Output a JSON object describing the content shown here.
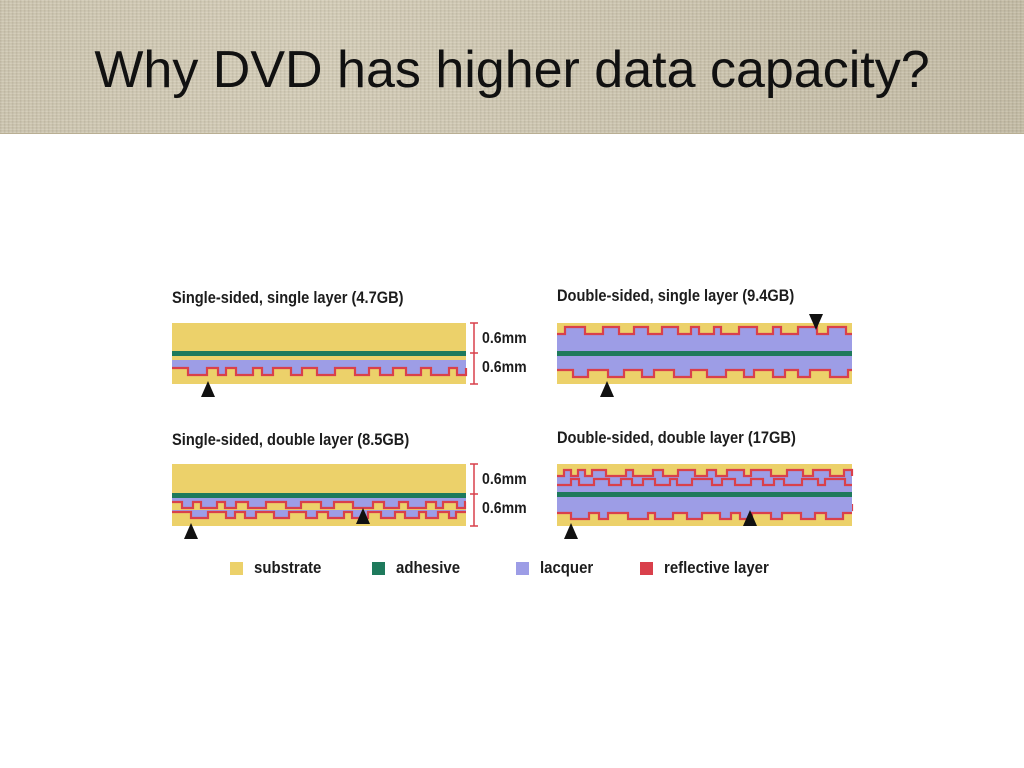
{
  "slide": {
    "title": "Why DVD has higher data capacity?"
  },
  "figure": {
    "panels": [
      {
        "title": "Single-sided, single layer (4.7GB)"
      },
      {
        "title": "Double-sided, single layer (9.4GB)"
      },
      {
        "title": "Single-sided, double layer (8.5GB)"
      },
      {
        "title": "Double-sided, double layer (17GB)"
      }
    ],
    "thickness_labels": [
      "0.6mm",
      "0.6mm",
      "0.6mm",
      "0.6mm"
    ],
    "legend": [
      {
        "label": "substrate",
        "color": "#ecd16a"
      },
      {
        "label": "adhesive",
        "color": "#1e7a5c"
      },
      {
        "label": "lacquer",
        "color": "#9d9de6"
      },
      {
        "label": "reflective layer",
        "color": "#d9404b"
      }
    ],
    "colors": {
      "substrate": "#ecd16a",
      "adhesive": "#1e7a5c",
      "lacquer": "#9d9de6",
      "reflective": "#d9404b",
      "marker": "#111111"
    }
  }
}
